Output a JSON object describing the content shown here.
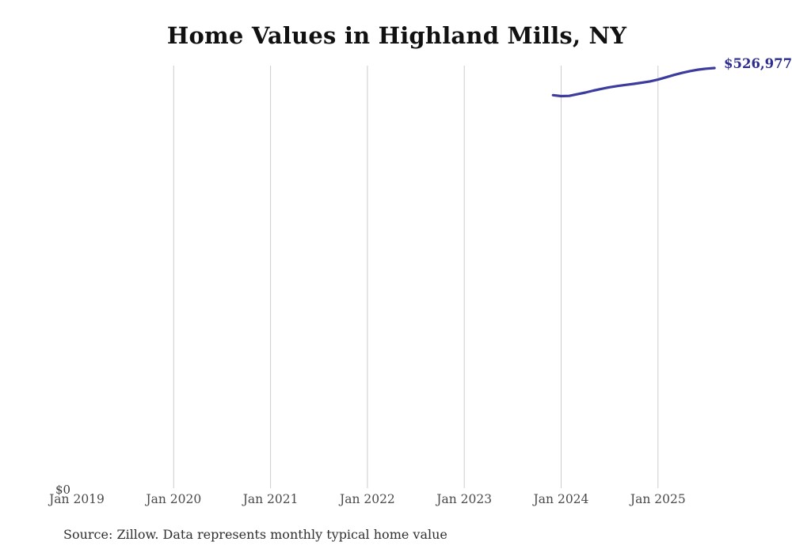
{
  "chart": {
    "title": "Home Values in Highland Mills, NY",
    "y_zero_label": "$0",
    "end_label": "$526,977",
    "source": "Source: Zillow. Data represents monthly typical home value"
  },
  "colors": {
    "line": "#3c3c9e",
    "end_label": "#2d2d8e",
    "gridline": "#cccccc",
    "background": "#ffffff"
  },
  "chart_data": {
    "type": "line",
    "title": "Home Values in Highland Mills, NY",
    "xlabel": "",
    "ylabel": "",
    "x_tick_labels": [
      "Jan 2019",
      "Jan 2020",
      "Jan 2021",
      "Jan 2022",
      "Jan 2023",
      "Jan 2024",
      "Jan 2025"
    ],
    "x_gridlines": [
      "Jan 2020",
      "Jan 2021",
      "Jan 2022",
      "Jan 2023",
      "Jan 2024",
      "Jan 2025"
    ],
    "y_tick_labels": [
      "$0"
    ],
    "ylim": [
      0,
      530000
    ],
    "grid": "vertical-only",
    "legend": "none",
    "end_annotation": "$526,977",
    "series": [
      {
        "name": "Monthly typical home value",
        "points": [
          {
            "date": "2023-12",
            "value": 493000
          },
          {
            "date": "2024-01",
            "value": 491800
          },
          {
            "date": "2024-02",
            "value": 492100
          },
          {
            "date": "2024-03",
            "value": 494200
          },
          {
            "date": "2024-04",
            "value": 496300
          },
          {
            "date": "2024-05",
            "value": 498700
          },
          {
            "date": "2024-06",
            "value": 500900
          },
          {
            "date": "2024-07",
            "value": 502900
          },
          {
            "date": "2024-08",
            "value": 504500
          },
          {
            "date": "2024-09",
            "value": 505900
          },
          {
            "date": "2024-10",
            "value": 507200
          },
          {
            "date": "2024-11",
            "value": 508700
          },
          {
            "date": "2024-12",
            "value": 510200
          },
          {
            "date": "2025-01",
            "value": 512500
          },
          {
            "date": "2025-02",
            "value": 515400
          },
          {
            "date": "2025-03",
            "value": 518400
          },
          {
            "date": "2025-04",
            "value": 521000
          },
          {
            "date": "2025-05",
            "value": 523300
          },
          {
            "date": "2025-06",
            "value": 525000
          },
          {
            "date": "2025-07",
            "value": 526200
          },
          {
            "date": "2025-08",
            "value": 526977
          }
        ]
      }
    ]
  }
}
